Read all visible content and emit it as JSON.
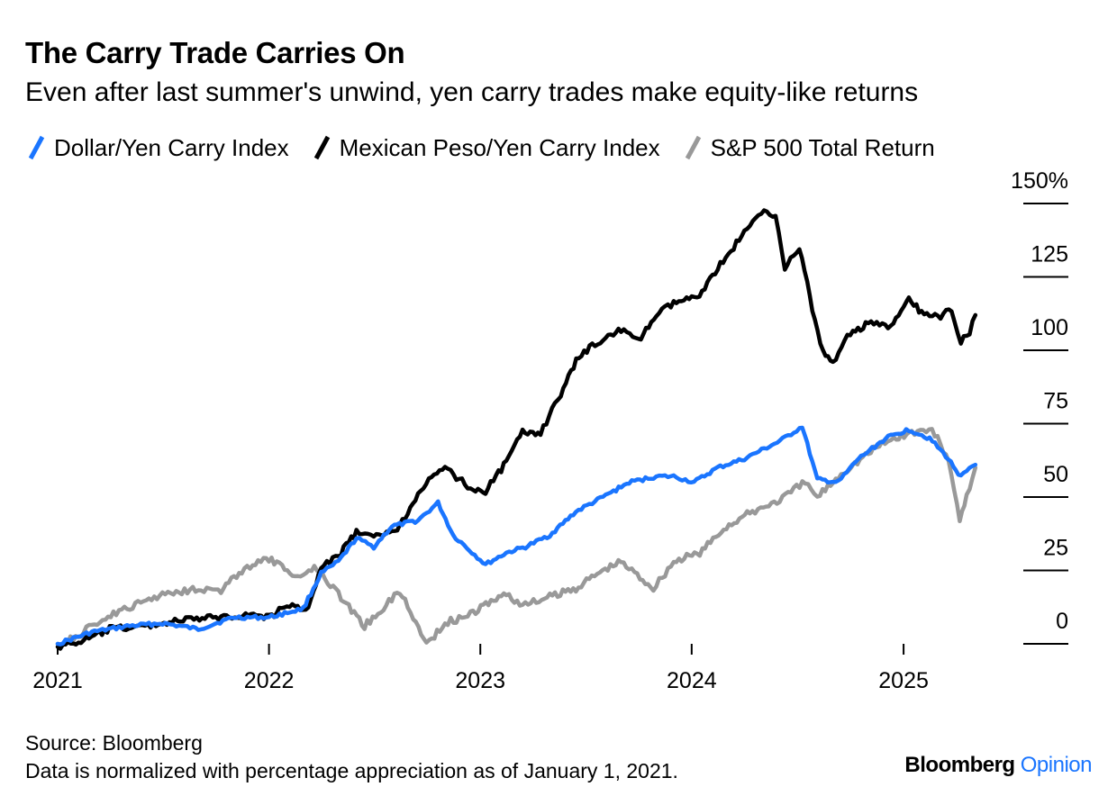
{
  "title": "The Carry Trade Carries On",
  "subtitle": "Even after last summer's unwind, yen carry trades make equity-like returns",
  "footer": {
    "source": "Source: Bloomberg",
    "note": "Data is normalized with percentage appreciation as of January 1, 2021.",
    "brand_main": "Bloomberg",
    "brand_accent": "Opinion"
  },
  "colors": {
    "usd_jpy": "#1a75ff",
    "mxn_jpy": "#000000",
    "spx": "#999999"
  },
  "chart_data": {
    "type": "line",
    "title": "The Carry Trade Carries On",
    "subtitle": "Even after last summer's unwind, yen carry trades make equity-like returns",
    "xlabel": "",
    "ylabel": "",
    "xlim": [
      "2021-01-01",
      "2025-05-10"
    ],
    "ylim": [
      -10,
      150
    ],
    "y_unit": "%",
    "y_ticks": [
      0,
      25,
      50,
      75,
      100,
      125,
      150
    ],
    "y_tick_labels": [
      "0",
      "25",
      "50",
      "75",
      "100",
      "125",
      "150%"
    ],
    "x_ticks": [
      "2021-01-01",
      "2022-01-01",
      "2023-01-01",
      "2024-01-01",
      "2025-01-01"
    ],
    "x_tick_labels": [
      "2021",
      "2022",
      "2023",
      "2024",
      "2025"
    ],
    "grid": false,
    "legend_position": "top-left",
    "series": [
      {
        "name": "Dollar/Yen Carry Index",
        "color": "#1a75ff",
        "points": [
          [
            "2021-01-01",
            0
          ],
          [
            "2021-03-01",
            4
          ],
          [
            "2021-05-01",
            6
          ],
          [
            "2021-07-01",
            7
          ],
          [
            "2021-09-01",
            5
          ],
          [
            "2021-11-01",
            9
          ],
          [
            "2022-01-01",
            9
          ],
          [
            "2022-03-01",
            12
          ],
          [
            "2022-04-01",
            24
          ],
          [
            "2022-05-01",
            28
          ],
          [
            "2022-06-01",
            36
          ],
          [
            "2022-07-01",
            33
          ],
          [
            "2022-08-01",
            40
          ],
          [
            "2022-09-15",
            42
          ],
          [
            "2022-10-20",
            48
          ],
          [
            "2022-11-15",
            37
          ],
          [
            "2023-01-10",
            27
          ],
          [
            "2023-02-15",
            31
          ],
          [
            "2023-03-20",
            33
          ],
          [
            "2023-05-01",
            37
          ],
          [
            "2023-06-15",
            45
          ],
          [
            "2023-08-01",
            50
          ],
          [
            "2023-09-15",
            55
          ],
          [
            "2023-11-01",
            57
          ],
          [
            "2023-12-01",
            57
          ],
          [
            "2024-01-05",
            55
          ],
          [
            "2024-02-15",
            60
          ],
          [
            "2024-04-01",
            63
          ],
          [
            "2024-05-01",
            66
          ],
          [
            "2024-06-01",
            69
          ],
          [
            "2024-07-10",
            74
          ],
          [
            "2024-08-05",
            56
          ],
          [
            "2024-09-10",
            55
          ],
          [
            "2024-10-15",
            63
          ],
          [
            "2024-12-01",
            70
          ],
          [
            "2025-01-10",
            73
          ],
          [
            "2025-02-15",
            70
          ],
          [
            "2025-03-15",
            64
          ],
          [
            "2025-04-10",
            57
          ],
          [
            "2025-05-05",
            61
          ]
        ]
      },
      {
        "name": "Mexican Peso/Yen Carry Index",
        "color": "#000000",
        "points": [
          [
            "2021-01-01",
            -1
          ],
          [
            "2021-02-15",
            1
          ],
          [
            "2021-04-01",
            5
          ],
          [
            "2021-06-01",
            6
          ],
          [
            "2021-08-01",
            8
          ],
          [
            "2021-10-01",
            9
          ],
          [
            "2021-12-01",
            10
          ],
          [
            "2022-01-01",
            9
          ],
          [
            "2022-02-01",
            13
          ],
          [
            "2022-03-10",
            12
          ],
          [
            "2022-04-01",
            26
          ],
          [
            "2022-05-01",
            30
          ],
          [
            "2022-06-01",
            38
          ],
          [
            "2022-07-01",
            36
          ],
          [
            "2022-08-15",
            40
          ],
          [
            "2022-09-20",
            53
          ],
          [
            "2022-11-01",
            60
          ],
          [
            "2022-12-15",
            53
          ],
          [
            "2023-01-10",
            52
          ],
          [
            "2023-02-15",
            62
          ],
          [
            "2023-03-15",
            72
          ],
          [
            "2023-04-15",
            72
          ],
          [
            "2023-05-20",
            85
          ],
          [
            "2023-06-20",
            98
          ],
          [
            "2023-08-01",
            104
          ],
          [
            "2023-09-01",
            107
          ],
          [
            "2023-10-01",
            103
          ],
          [
            "2023-11-01",
            112
          ],
          [
            "2023-12-01",
            116
          ],
          [
            "2024-01-10",
            118
          ],
          [
            "2024-02-15",
            128
          ],
          [
            "2024-04-01",
            140
          ],
          [
            "2024-05-05",
            148
          ],
          [
            "2024-05-25",
            146
          ],
          [
            "2024-06-10",
            128
          ],
          [
            "2024-07-05",
            135
          ],
          [
            "2024-08-01",
            110
          ],
          [
            "2024-08-15",
            99
          ],
          [
            "2024-09-01",
            96
          ],
          [
            "2024-10-01",
            106
          ],
          [
            "2024-11-01",
            109
          ],
          [
            "2024-12-10",
            108
          ],
          [
            "2025-01-10",
            117
          ],
          [
            "2025-02-01",
            113
          ],
          [
            "2025-03-01",
            111
          ],
          [
            "2025-03-25",
            114
          ],
          [
            "2025-04-10",
            103
          ],
          [
            "2025-04-25",
            106
          ],
          [
            "2025-05-05",
            112
          ]
        ]
      },
      {
        "name": "S&P 500 Total Return",
        "color": "#999999",
        "points": [
          [
            "2021-01-01",
            0
          ],
          [
            "2021-02-01",
            2
          ],
          [
            "2021-03-15",
            8
          ],
          [
            "2021-05-01",
            12
          ],
          [
            "2021-07-01",
            17
          ],
          [
            "2021-09-01",
            19
          ],
          [
            "2021-10-10",
            18
          ],
          [
            "2021-11-15",
            25
          ],
          [
            "2022-01-01",
            29
          ],
          [
            "2022-02-15",
            23
          ],
          [
            "2022-03-25",
            26
          ],
          [
            "2022-05-01",
            17
          ],
          [
            "2022-06-15",
            6
          ],
          [
            "2022-08-15",
            18
          ],
          [
            "2022-09-30",
            0
          ],
          [
            "2022-11-01",
            7
          ],
          [
            "2022-12-15",
            10
          ],
          [
            "2023-01-15",
            14
          ],
          [
            "2023-02-15",
            17
          ],
          [
            "2023-03-15",
            13
          ],
          [
            "2023-05-01",
            16
          ],
          [
            "2023-06-15",
            19
          ],
          [
            "2023-07-31",
            25
          ],
          [
            "2023-09-01",
            28
          ],
          [
            "2023-10-27",
            19
          ],
          [
            "2023-12-01",
            28
          ],
          [
            "2024-01-15",
            31
          ],
          [
            "2024-03-01",
            40
          ],
          [
            "2024-04-15",
            45
          ],
          [
            "2024-06-01",
            49
          ],
          [
            "2024-07-15",
            55
          ],
          [
            "2024-08-05",
            50
          ],
          [
            "2024-09-15",
            58
          ],
          [
            "2024-11-15",
            67
          ],
          [
            "2024-12-15",
            70
          ],
          [
            "2025-01-15",
            72
          ],
          [
            "2025-02-19",
            73
          ],
          [
            "2025-03-20",
            63
          ],
          [
            "2025-04-08",
            41
          ],
          [
            "2025-04-20",
            50
          ],
          [
            "2025-05-05",
            60
          ]
        ]
      }
    ]
  }
}
